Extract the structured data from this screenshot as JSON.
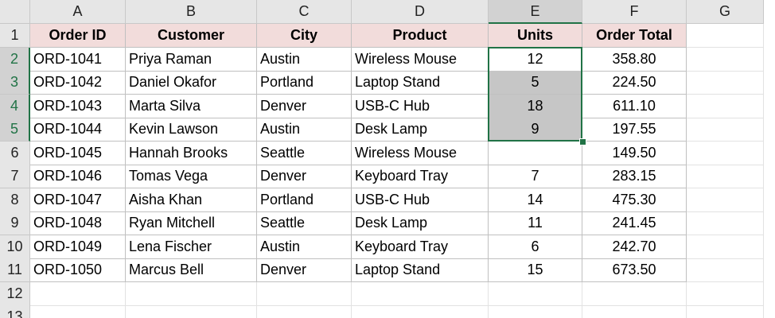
{
  "column_headers": [
    "A",
    "B",
    "C",
    "D",
    "E",
    "F",
    "G"
  ],
  "row_headers": [
    1,
    2,
    3,
    4,
    5,
    6,
    7,
    8,
    9,
    10,
    11,
    12,
    13
  ],
  "table": {
    "header": [
      "Order ID",
      "Customer",
      "City",
      "Product",
      "Units",
      "Order Total"
    ],
    "rows": [
      [
        "ORD-1041",
        "Priya Raman",
        "Austin",
        "Wireless Mouse",
        12,
        "358.80"
      ],
      [
        "ORD-1042",
        "Daniel Okafor",
        "Portland",
        "Laptop Stand",
        5,
        "224.50"
      ],
      [
        "ORD-1043",
        "Marta Silva",
        "Denver",
        "USB-C Hub",
        18,
        "611.10"
      ],
      [
        "ORD-1044",
        "Kevin Lawson",
        "Austin",
        "Desk Lamp",
        9,
        "197.55"
      ],
      [
        "ORD-1045",
        "Hannah Brooks",
        "Seattle",
        "Wireless Mouse",
        null,
        "149.50"
      ],
      [
        "ORD-1046",
        "Tomas Vega",
        "Denver",
        "Keyboard Tray",
        7,
        "283.15"
      ],
      [
        "ORD-1047",
        "Aisha Khan",
        "Portland",
        "USB-C Hub",
        14,
        "475.30"
      ],
      [
        "ORD-1048",
        "Ryan Mitchell",
        "Seattle",
        "Desk Lamp",
        11,
        "241.45"
      ],
      [
        "ORD-1049",
        "Lena Fischer",
        "Austin",
        "Keyboard Tray",
        6,
        "242.70"
      ],
      [
        "ORD-1050",
        "Marcus Bell",
        "Denver",
        "Laptop Stand",
        15,
        "673.50"
      ]
    ]
  }
}
